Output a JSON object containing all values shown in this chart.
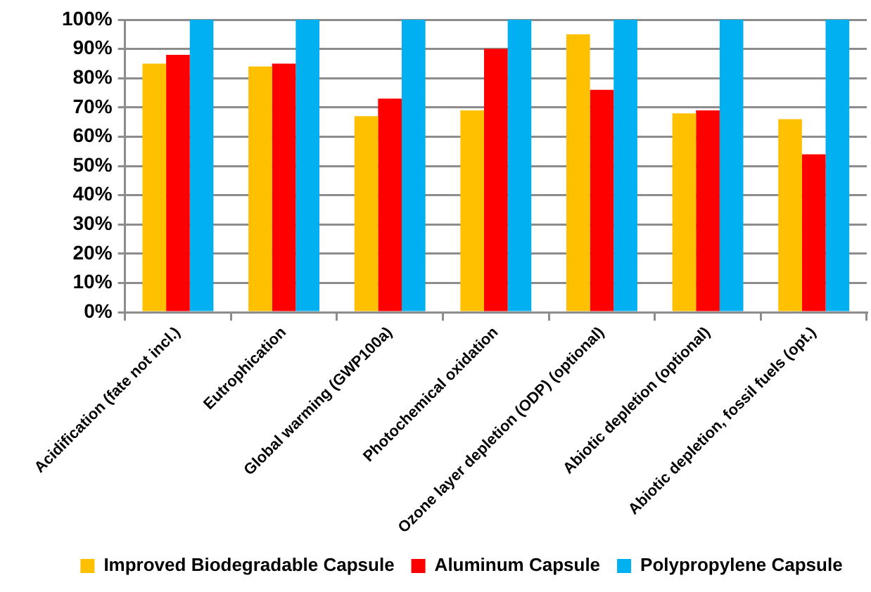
{
  "chart_data": {
    "type": "bar",
    "categories": [
      "Acidification (fate not incl.)",
      "Eutrophication",
      "Global warming (GWP100a)",
      "Photochemical oxidation",
      "Ozone layer depletion (ODP) (optional)",
      "Abiotic depletion (optional)",
      "Abiotic depletion, fossil fuels (opt.)"
    ],
    "series": [
      {
        "name": "Improved Biodegradable Capsule",
        "color": "#ffc000",
        "values": [
          85,
          84,
          67,
          69,
          95,
          68,
          66
        ]
      },
      {
        "name": "Aluminum Capsule",
        "color": "#ff0000",
        "values": [
          88,
          85,
          73,
          90,
          76,
          69,
          54
        ]
      },
      {
        "name": "Polypropylene Capsule",
        "color": "#00b0f0",
        "values": [
          100,
          100,
          100,
          100,
          100,
          100,
          100
        ]
      }
    ],
    "ylim": [
      0,
      100
    ],
    "yticks": [
      {
        "value": 0,
        "label": "0%"
      },
      {
        "value": 10,
        "label": "10%"
      },
      {
        "value": 20,
        "label": "20%"
      },
      {
        "value": 30,
        "label": "30%"
      },
      {
        "value": 40,
        "label": "40%"
      },
      {
        "value": 50,
        "label": "50%"
      },
      {
        "value": 60,
        "label": "60%"
      },
      {
        "value": 70,
        "label": "70%"
      },
      {
        "value": 80,
        "label": "80%"
      },
      {
        "value": 90,
        "label": "90%"
      },
      {
        "value": 100,
        "label": "100%"
      }
    ],
    "grid": "y",
    "legend": "bottom"
  }
}
